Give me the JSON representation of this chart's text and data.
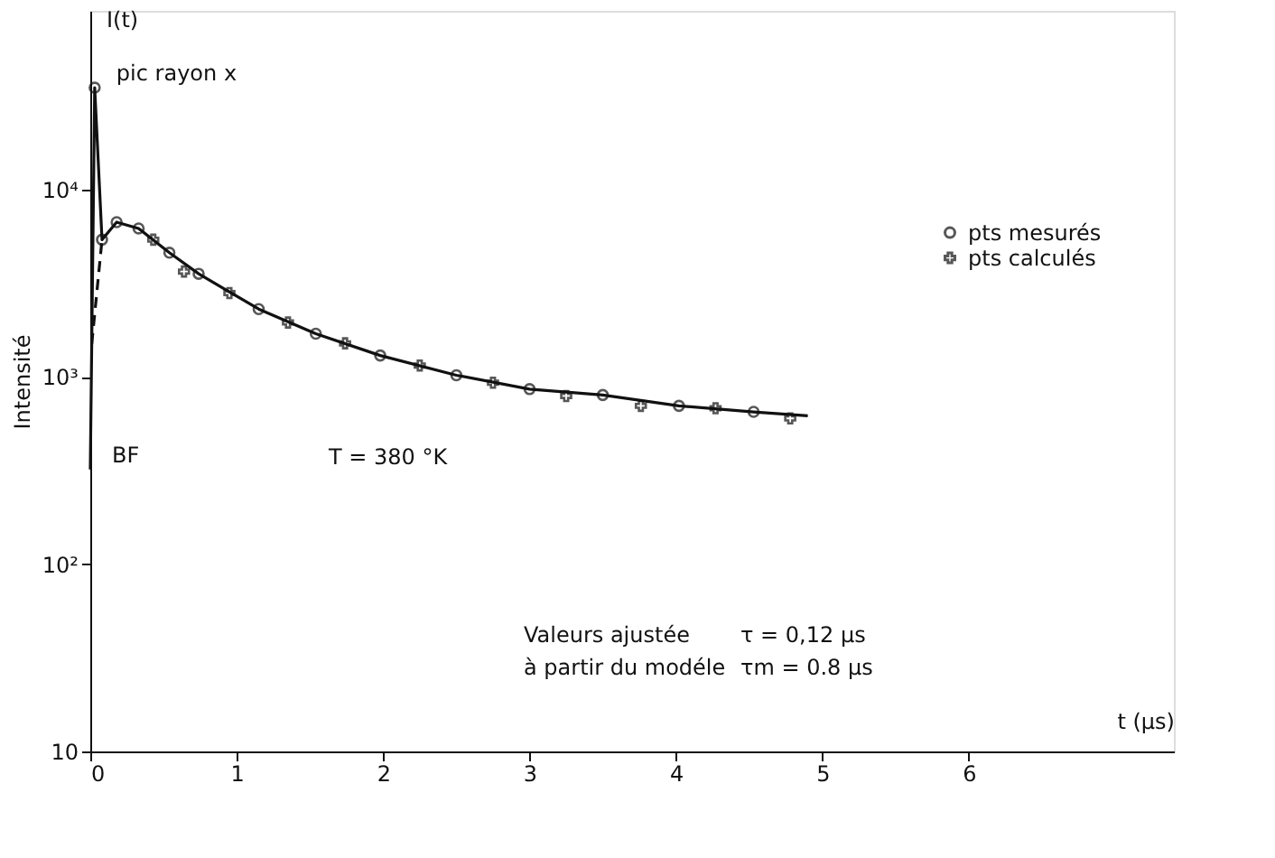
{
  "chart_data": {
    "type": "scatter",
    "xlabel": "t (μs)",
    "ylabel": "Intensité",
    "log": "y",
    "xlim": [
      0,
      7.4
    ],
    "xticks": [
      0,
      1,
      2,
      3,
      4,
      5,
      6
    ],
    "ylim": [
      10,
      90000
    ],
    "yticks": [
      10,
      {
        "value": 100,
        "label": "10²"
      },
      {
        "value": 1000,
        "label": "10³"
      },
      {
        "value": 10000,
        "label": "10⁴"
      }
    ],
    "grid": false,
    "legend": "right",
    "series": [
      {
        "type": "line",
        "color": "#111111",
        "line_style": "solid",
        "marker": "none",
        "x": [
          0,
          0.03,
          0.08,
          0.18,
          0.33,
          0.54,
          0.74,
          1.15,
          1.54,
          1.98,
          2.5,
          3.0,
          3.5,
          4.02,
          4.53,
          4.9
        ],
        "values": [
          320,
          35000,
          5400,
          6700,
          6200,
          4600,
          3550,
          2300,
          1700,
          1300,
          1020,
          860,
          800,
          700,
          650,
          620
        ]
      },
      {
        "type": "line",
        "color": "#111111",
        "line_style": "dashed",
        "marker": "none",
        "x": [
          0.01,
          0.08
        ],
        "values": [
          1500,
          5400
        ]
      },
      {
        "name": "pts mesurés",
        "color": "#111111",
        "marker": "circle",
        "x": [
          0.03,
          0.08,
          0.18,
          0.33,
          0.54,
          0.74,
          1.15,
          1.54,
          1.98,
          2.5,
          3.0,
          3.5,
          4.02,
          4.53
        ],
        "values": [
          35000,
          5400,
          6700,
          6200,
          4600,
          3550,
          2300,
          1700,
          1300,
          1020,
          860,
          800,
          700,
          650
        ]
      },
      {
        "name": "pts calculés",
        "color": "#111111",
        "marker": "cross",
        "x": [
          0.43,
          0.64,
          0.95,
          1.35,
          1.74,
          2.25,
          2.75,
          3.25,
          3.76,
          4.27,
          4.78
        ],
        "values": [
          5400,
          3650,
          2800,
          1950,
          1510,
          1150,
          930,
          790,
          700,
          680,
          600
        ]
      }
    ],
    "annotations": [
      {
        "text": "pic rayon x",
        "x": 0.03,
        "y": 35000
      },
      {
        "text": "BF",
        "x": 0,
        "y": 320
      },
      "I(t)",
      "T = 380 °K",
      "Valeurs ajustée\nà partir du modéle",
      "τ   = 0,12 μs\nτm = 0.8 μs"
    ]
  }
}
